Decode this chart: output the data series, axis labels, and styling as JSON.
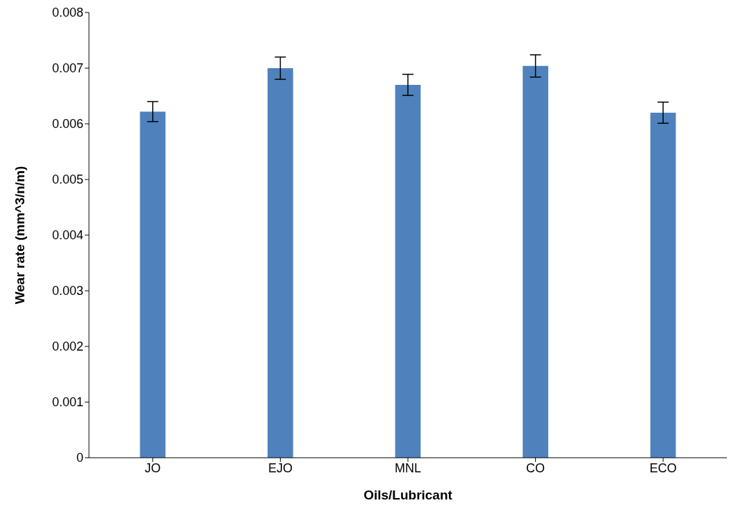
{
  "chart_data": {
    "type": "bar",
    "xlabel": "Oils/Lubricant",
    "ylabel": "Wear rate (mm^3/n/m)",
    "categories": [
      "JO",
      "EJO",
      "MNL",
      "CO",
      "ECO"
    ],
    "series": [
      {
        "color": "#4f81bd",
        "values": [
          0.00622,
          0.007,
          0.0067,
          0.00704,
          0.0062
        ],
        "errors": [
          0.00018,
          0.0002,
          0.00019,
          0.0002,
          0.00019
        ]
      }
    ],
    "ylim": [
      0,
      0.008
    ],
    "yticks": [
      0,
      0.001,
      0.002,
      0.003,
      0.004,
      0.005,
      0.006,
      0.007,
      0.008
    ],
    "grid": false,
    "legend": false
  }
}
